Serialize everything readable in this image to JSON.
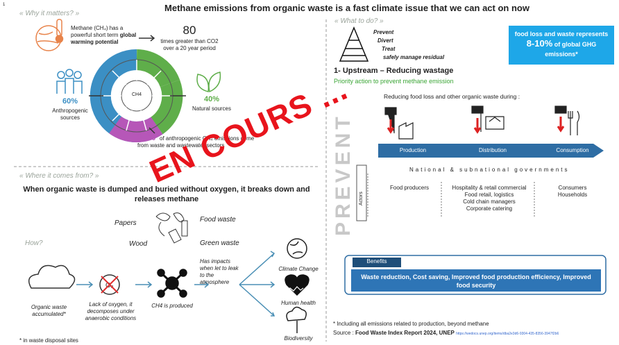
{
  "page_number": "1",
  "title": "Methane emissions from organic waste is a fast climate issue that we can act on now",
  "why": {
    "heading": "« Why it matters? »",
    "methane_text": "Methane (CH₄) has a powerful short term",
    "methane_bold": "global warming potential",
    "times_number": "80",
    "times_text": "times greater than CO2 over a 20 year period",
    "donut_center": "CH4",
    "anthro_pct": "60%",
    "anthro_label": "Anthropogenic sources",
    "natural_pct": "40%",
    "natural_label": "Natural sources",
    "waste_pct": "20%",
    "waste_text": "of anthropogenic CH₄ emissions come from waste and wastewater sectors"
  },
  "where": {
    "heading": "« Where it comes from? »",
    "statement": "When organic waste is dumped and buried without oxygen, it breaks down and releases methane",
    "sources": [
      "Papers",
      "Food waste",
      "Wood",
      "Green waste"
    ],
    "how": "How?",
    "steps": [
      "Organic waste accumulated*",
      "Lack of oxygen, it decomposes under anaerobic conditions",
      "CH4 is produced",
      "Has impacts when let to leak to the atmosphere"
    ],
    "impacts": [
      "Climate Change",
      "Human health",
      "Biodiversity"
    ],
    "footnote": "* in waste disposal sites"
  },
  "what": {
    "heading": "« What to do? »",
    "hierarchy": [
      "Prevent",
      "Divert",
      "Treat",
      "safely manage residual"
    ],
    "ghg_box": {
      "text_before": "food loss and waste represents",
      "pct": "8-10%",
      "text_after": "of global GHG emissions*"
    },
    "upstream_title": "1- Upstream – Reducing wastage",
    "priority": "Priority action to prevent methane emission",
    "reducing": "Reducing food loss and other organic waste during :",
    "stages": [
      "Production",
      "Distribution",
      "Consumption"
    ],
    "prevent_label": "PREVENT",
    "governments": "National & subnational governments",
    "actors_label": "Actors",
    "actors": [
      [
        "Food producers"
      ],
      [
        "Hospitality & retail commercial",
        "Food retail, logistics",
        "Cold chain managers",
        "Corporate catering"
      ],
      [
        "Consumers",
        "Households"
      ]
    ],
    "benefits_label": "Benefits",
    "benefits": "Waste reduction, Cost saving, Improved food production efficiency, Improved food security"
  },
  "footnote": "* Including all emissions related to production, beyond methane",
  "source_label": "Source : ",
  "source": "Food Waste Index Report 2024, UNEP",
  "source_url": "https://wedocs.unep.org/items/dba2e3d6-9304-435-8356-3947f2b6",
  "watermark": "EN COURS ..."
}
